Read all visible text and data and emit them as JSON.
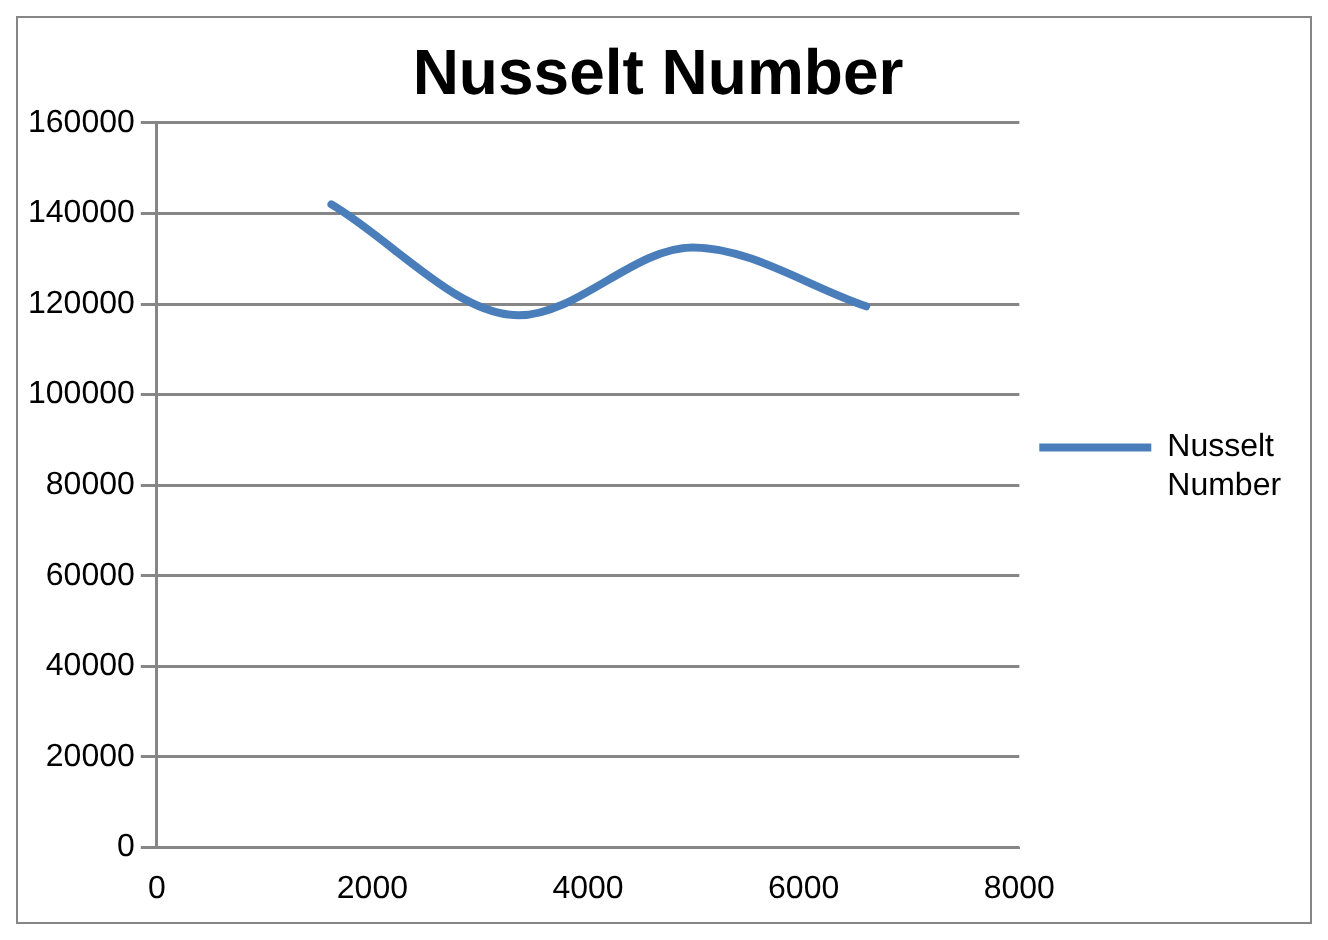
{
  "chart_data": {
    "type": "line",
    "title": "Nusselt Number",
    "x": [
      1620,
      3360,
      4970,
      6580
    ],
    "series": [
      {
        "name": "Nusselt Number",
        "color": "#4a7ebb",
        "values": [
          142000,
          117500,
          132500,
          119500
        ]
      }
    ],
    "xlim": [
      0,
      8000
    ],
    "xticks": [
      0,
      2000,
      4000,
      6000,
      8000
    ],
    "ylim": [
      0,
      160000
    ],
    "yticks": [
      0,
      20000,
      40000,
      60000,
      80000,
      100000,
      120000,
      140000,
      160000
    ],
    "grid": "y",
    "legend": "right",
    "marker": "none",
    "line_style": "solid"
  }
}
